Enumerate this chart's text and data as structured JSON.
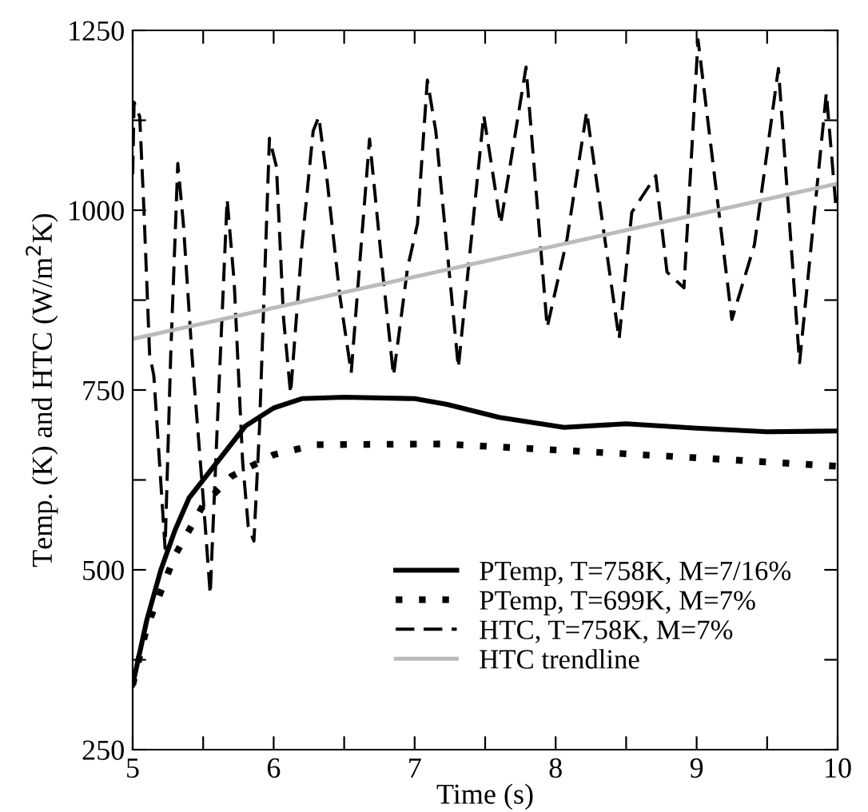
{
  "chart_data": {
    "type": "line",
    "xlabel": "Time (s)",
    "ylabel": "Temp. (K) and HTC (W/m$^{2}$K)",
    "xlim": [
      5,
      10
    ],
    "ylim": [
      250,
      1250
    ],
    "xticks": [
      5,
      {
        "value": 5.5,
        "label": null
      },
      6,
      {
        "value": 6.5,
        "label": null
      },
      7,
      {
        "value": 7.5,
        "label": null
      },
      8,
      {
        "value": 8.5,
        "label": null
      },
      9,
      {
        "value": 9.5,
        "label": null
      },
      10
    ],
    "yticks": [
      250,
      {
        "value": 375,
        "label": null
      },
      500,
      {
        "value": 625,
        "label": null
      },
      750,
      {
        "value": 875,
        "label": null
      },
      1000,
      {
        "value": 1125,
        "label": null
      },
      1250
    ],
    "grid": false,
    "legend": "lower right",
    "series": [
      {
        "name": "PTemp, T=758K, M=7/16%",
        "color": "#000000",
        "line_style": "solid",
        "x": [
          5.0,
          5.05,
          5.1,
          5.2,
          5.3,
          5.4,
          5.6,
          5.8,
          6.0,
          6.2,
          6.5,
          7.0,
          7.23,
          7.6,
          8.06,
          8.5,
          9.0,
          9.5,
          10.0
        ],
        "values": [
          340,
          385,
          430,
          500,
          555,
          600,
          650,
          700,
          725,
          738,
          740,
          738,
          730,
          712,
          698,
          703,
          697,
          692,
          693
        ]
      },
      {
        "name": "PTemp, T=699K, M=7%",
        "color": "#000000",
        "line_style": "dotted",
        "x": [
          5.0,
          5.1,
          5.2,
          5.3,
          5.5,
          5.7,
          5.9,
          6.0,
          6.3,
          7.2,
          8.06,
          9.07,
          10.0
        ],
        "values": [
          340,
          420,
          470,
          520,
          590,
          630,
          650,
          660,
          674,
          675,
          666,
          655,
          644
        ]
      },
      {
        "name": "HTC, T=758K, M=7%",
        "color": "#000000",
        "line_style": "dashed",
        "x": [
          5.0,
          5.01,
          5.05,
          5.08,
          5.12,
          5.15,
          5.2,
          5.23,
          5.27,
          5.32,
          5.36,
          5.42,
          5.5,
          5.55,
          5.6,
          5.67,
          5.72,
          5.78,
          5.82,
          5.86,
          5.9,
          5.97,
          6.02,
          6.07,
          6.12,
          6.2,
          6.28,
          6.32,
          6.38,
          6.47,
          6.55,
          6.62,
          6.68,
          6.72,
          6.78,
          6.85,
          6.95,
          7.02,
          7.09,
          7.15,
          7.31,
          7.49,
          7.61,
          7.79,
          7.94,
          8.08,
          8.22,
          8.45,
          8.54,
          8.71,
          8.79,
          8.91,
          9.01,
          9.25,
          9.41,
          9.58,
          9.73,
          9.92,
          9.99
        ],
        "values": [
          1050,
          1150,
          1130,
          1000,
          800,
          770,
          620,
          530,
          800,
          1065,
          980,
          800,
          600,
          466,
          700,
          1015,
          900,
          650,
          560,
          540,
          700,
          1100,
          1060,
          850,
          745,
          950,
          1110,
          1130,
          1040,
          880,
          774,
          950,
          1099,
          1020,
          900,
          770,
          920,
          981,
          1181,
          1110,
          781,
          1132,
          981,
          1199,
          837,
          959,
          1137,
          821,
          997,
          1048,
          914,
          892,
          1237,
          848,
          952,
          1197,
          788,
          1163,
          1000
        ]
      },
      {
        "name": "HTC trendline",
        "color": "#bbbbbb",
        "line_style": "solid",
        "x": [
          5,
          10
        ],
        "values": [
          821,
          1037
        ]
      }
    ]
  }
}
